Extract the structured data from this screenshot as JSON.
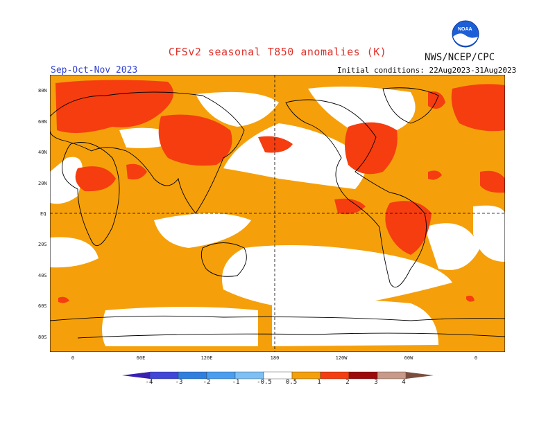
{
  "header": {
    "title": "CFSv2 seasonal T850 anomalies (K)",
    "agency": "NWS/NCEP/CPC",
    "logo_text": "NOAA",
    "season": "Sep-Oct-Nov 2023",
    "initial_conditions": "Initial conditions: 22Aug2023-31Aug2023"
  },
  "axes": {
    "lat_labels": [
      "80N",
      "60N",
      "40N",
      "20N",
      "EQ",
      "20S",
      "40S",
      "60S",
      "80S"
    ],
    "lon_labels": [
      "0",
      "60E",
      "120E",
      "180",
      "120W",
      "60W",
      "0"
    ]
  },
  "legend": {
    "labels": [
      "-4",
      "-3",
      "-2",
      "-1",
      "-0.5",
      "0.5",
      "1",
      "2",
      "3",
      "4"
    ],
    "colors": [
      "#3a1fb0",
      "#3f46d8",
      "#2f7fe0",
      "#4a9ef0",
      "#7dc0f5",
      "#ffffff",
      "#f5a00a",
      "#f53d10",
      "#9c0a0a",
      "#c89a8a",
      "#7a4e3e"
    ]
  },
  "colors": {
    "warm1": "#f5a00a",
    "warm2": "#f53d10",
    "title": "#e0302a",
    "season": "#2f3fd8"
  }
}
